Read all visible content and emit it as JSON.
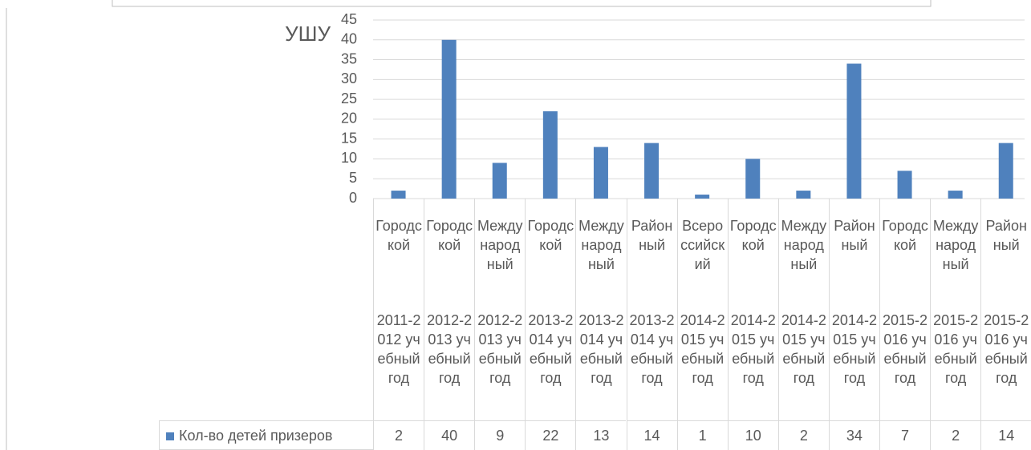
{
  "chart_data": {
    "type": "bar",
    "title": "УШУ",
    "categories": [
      [
        "Городской",
        "2011-2012 учебный год"
      ],
      [
        "Городской",
        "2012-2013 учебный год"
      ],
      [
        "Международный",
        "2012-2013 учебный год"
      ],
      [
        "Городской",
        "2013-2014 учебный год"
      ],
      [
        "Международный",
        "2013-2014 учебный год"
      ],
      [
        "Районный",
        "2013-2014 учебный год"
      ],
      [
        "Всероссийский",
        "2014-2015 учебный год"
      ],
      [
        "Городской",
        "2014-2015 учебный год"
      ],
      [
        "Международный",
        "2014-2015 учебный год"
      ],
      [
        "Районный",
        "2014-2015 учебный год"
      ],
      [
        "Городской",
        "2015-2016 учебный год"
      ],
      [
        "Международный",
        "2015-2016 учебный год"
      ],
      [
        "Районный",
        "2015-2016 учебный год"
      ]
    ],
    "series": [
      {
        "name": "Кол-во детей призеров",
        "color": "#4f81bd",
        "values": [
          2,
          40,
          9,
          22,
          13,
          14,
          1,
          10,
          2,
          34,
          7,
          2,
          14
        ]
      }
    ],
    "ylim": [
      0,
      45
    ],
    "yticks": [
      0,
      5,
      10,
      15,
      20,
      25,
      30,
      35,
      40,
      45
    ],
    "grid": true
  }
}
